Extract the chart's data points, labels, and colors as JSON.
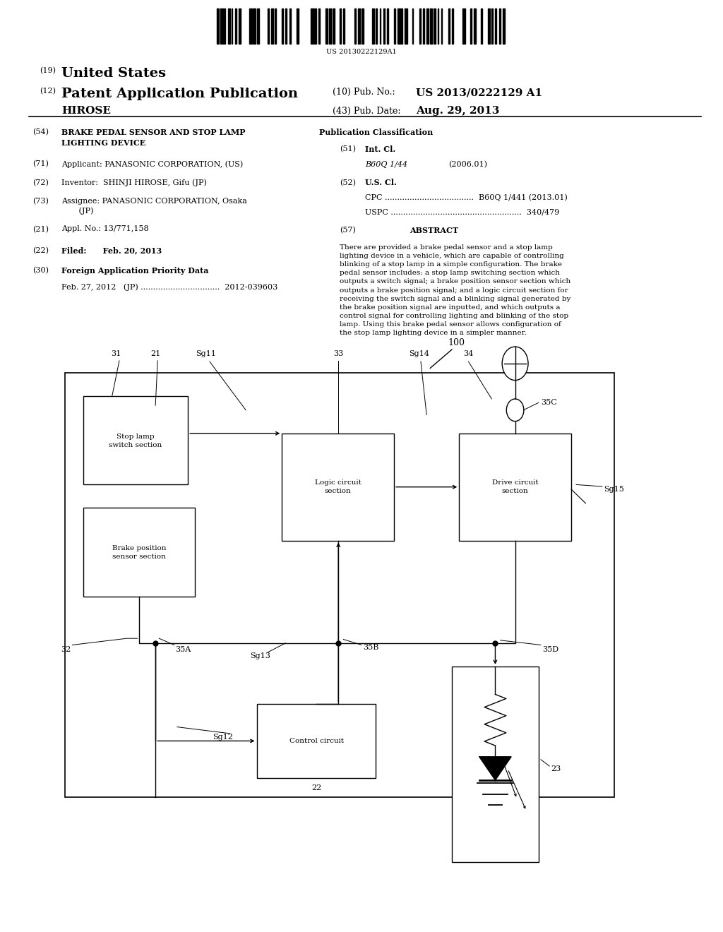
{
  "bg_color": "#ffffff",
  "page_width": 10.24,
  "page_height": 13.2,
  "barcode_text": "US 20130222129A1",
  "header_line1_num": "(19)",
  "header_line1_text": "United States",
  "header_line2_num": "(12)",
  "header_line2_text": "Patent Application Publication",
  "header_pub_no_label": "(10) Pub. No.:",
  "header_pub_no_value": "US 2013/0222129 A1",
  "header_name": "HIROSE",
  "header_date_label": "(43) Pub. Date:",
  "header_date_value": "Aug. 29, 2013",
  "field54_num": "(54)",
  "field54_text": "BRAKE PEDAL SENSOR AND STOP LAMP\nLIGHTING DEVICE",
  "field71_num": "(71)",
  "field71_text": "Applicant: PANASONIC CORPORATION, (US)",
  "field72_num": "(72)",
  "field72_text": "Inventor:  SHINJI HIROSE, Gifu (JP)",
  "field73_num": "(73)",
  "field73_text": "Assignee: PANASONIC CORPORATION, Osaka\n       (JP)",
  "field21_num": "(21)",
  "field21_text": "Appl. No.: 13/771,158",
  "field22_num": "(22)",
  "field22_text": "Filed:      Feb. 20, 2013",
  "field30_num": "(30)",
  "field30_text": "Foreign Application Priority Data",
  "field30_sub": "Feb. 27, 2012   (JP) ................................  2012-039603",
  "pub_class_title": "Publication Classification",
  "field51_num": "(51)",
  "field51_text": "Int. Cl.",
  "field51_class": "B60Q 1/44",
  "field51_year": "(2006.01)",
  "field52_num": "(52)",
  "field52_text": "U.S. Cl.",
  "field52_cpc": "CPC ....................................  B60Q 1/441 (2013.01)",
  "field52_uspc": "USPC .....................................................  340/479",
  "field57_num": "(57)",
  "field57_title": "ABSTRACT",
  "field57_text": "There are provided a brake pedal sensor and a stop lamp\nlighting device in a vehicle, which are capable of controlling\nblinking of a stop lamp in a simple configuration. The brake\npedal sensor includes: a stop lamp switching section which\noutputs a switch signal; a brake position sensor section which\noutputs a brake position signal; and a logic circuit section for\nreceiving the switch signal and a blinking signal generated by\nthe brake position signal are inputted, and which outputs a\ncontrol signal for controlling lighting and blinking of the stop\nlamp. Using this brake pedal sensor allows configuration of\nthe stop lamp lighting device in a simpler manner.",
  "diagram_label_100": "100"
}
